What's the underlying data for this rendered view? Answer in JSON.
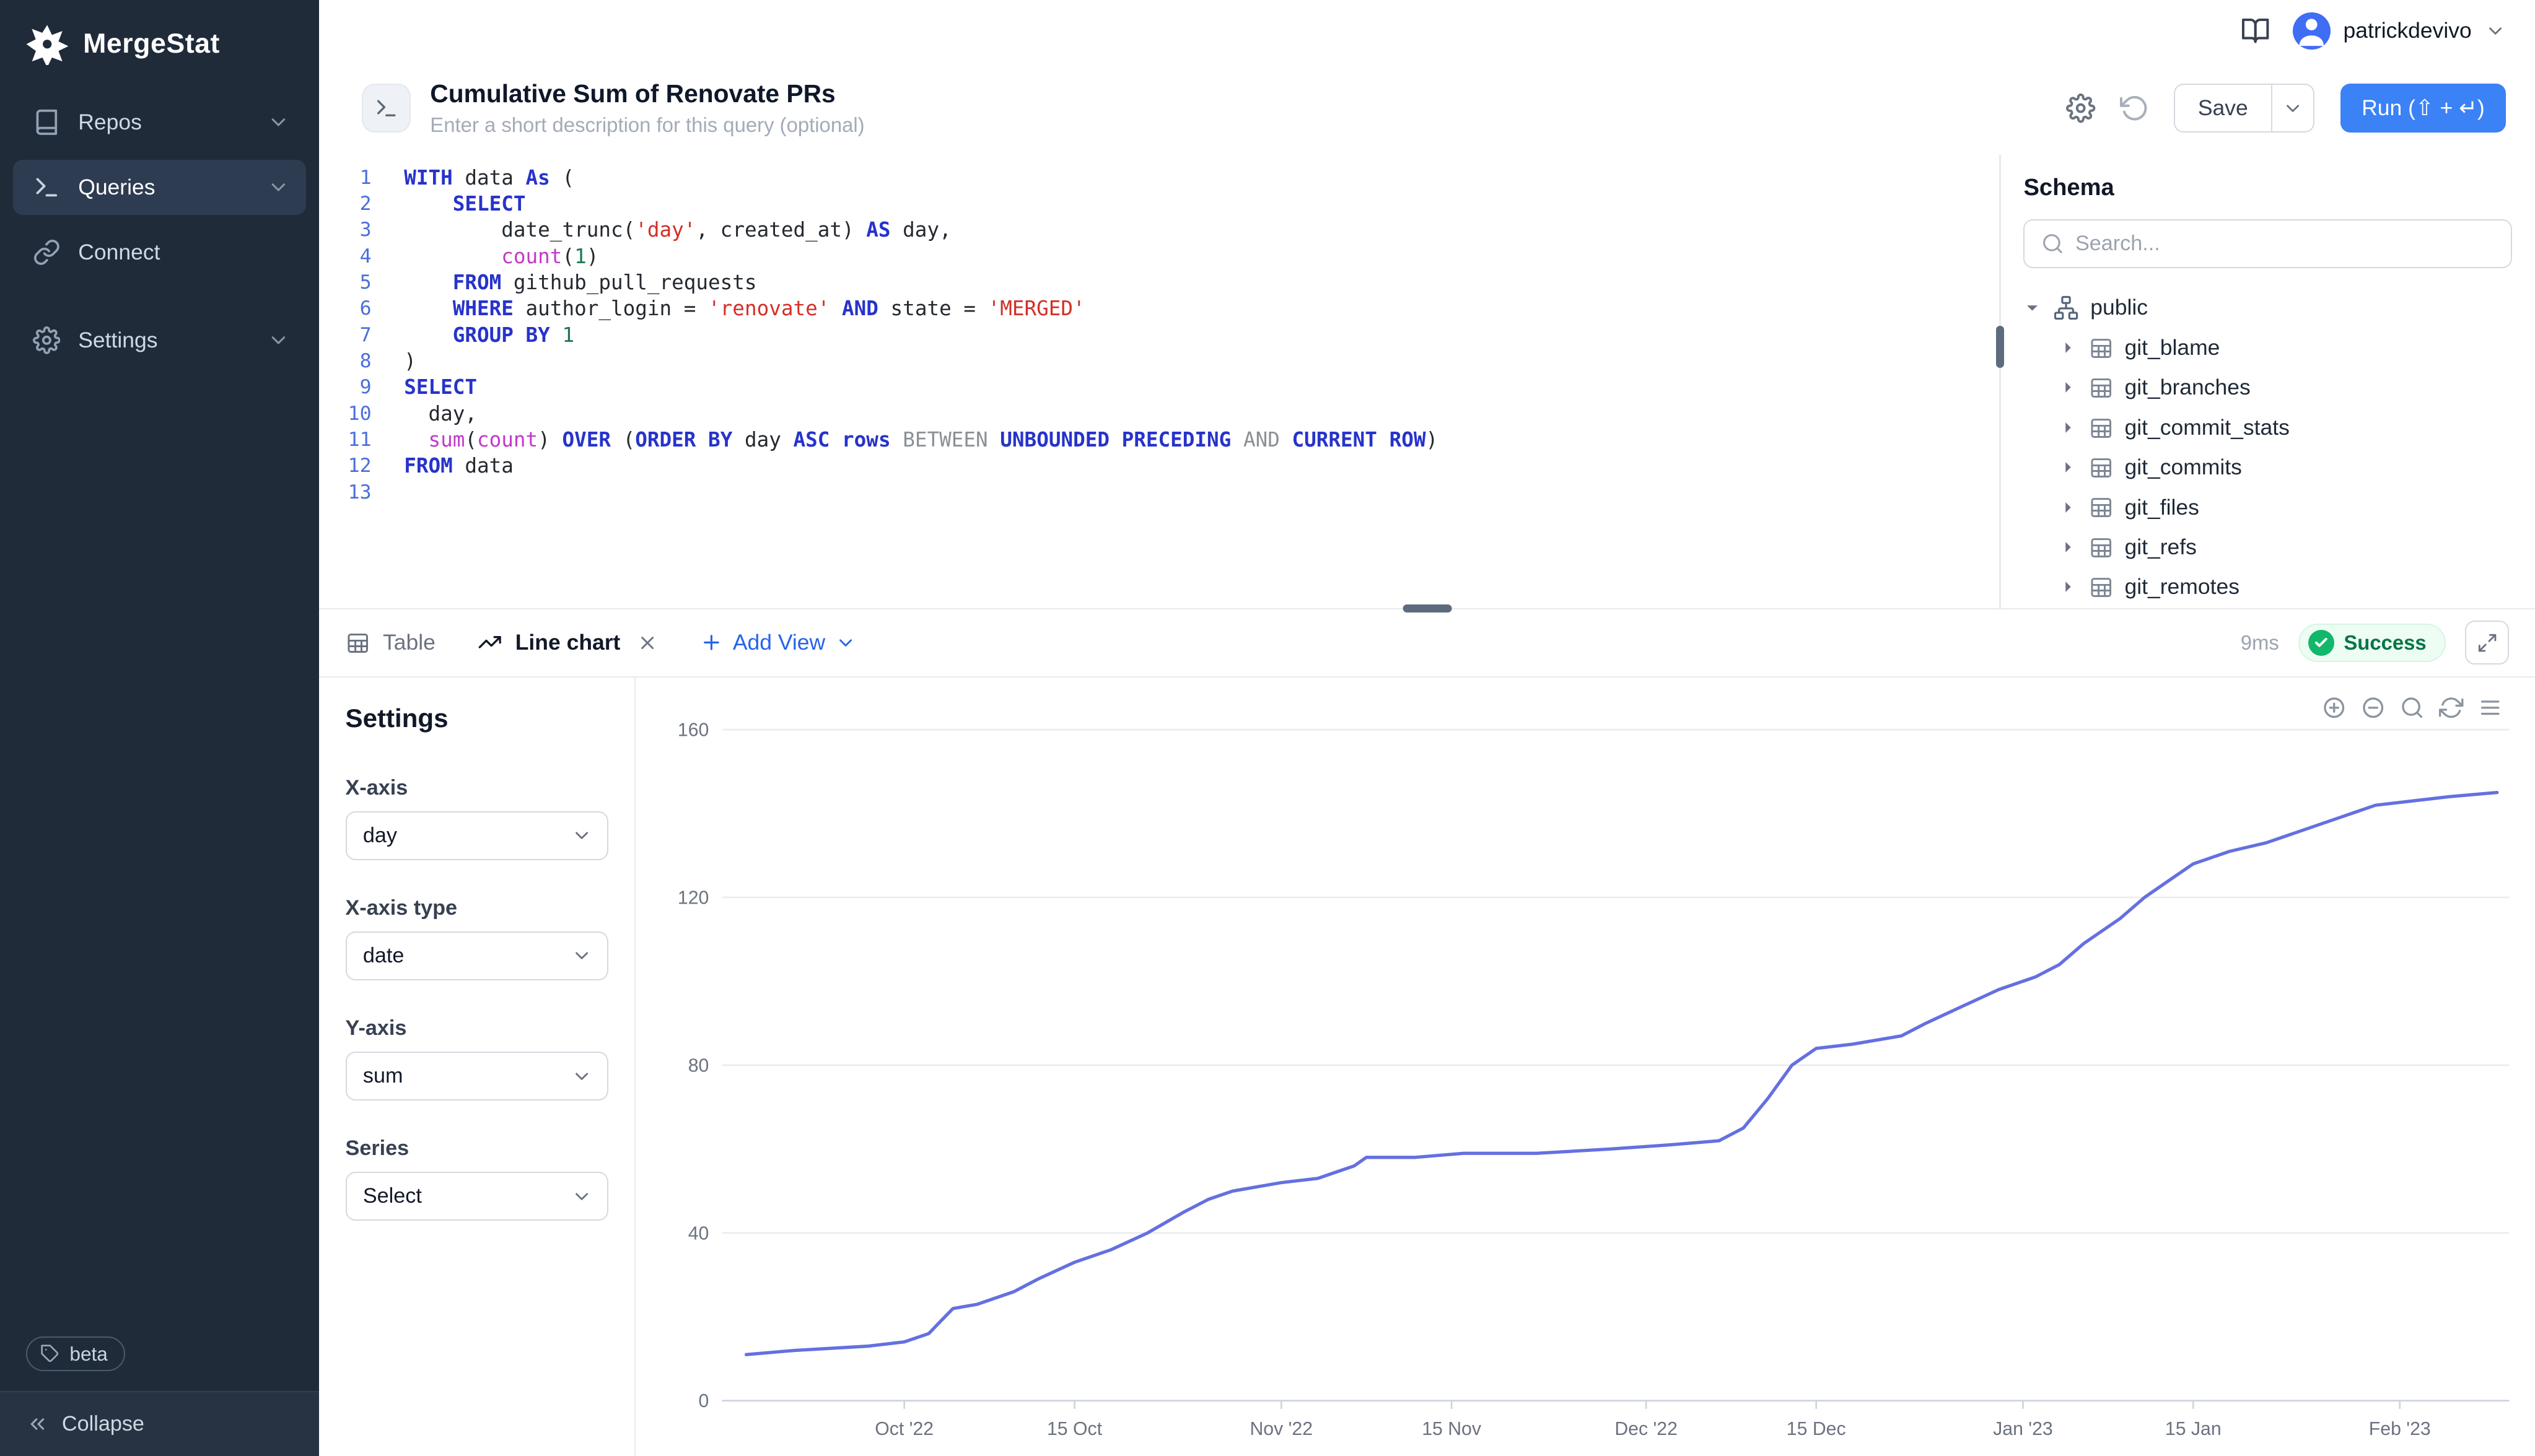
{
  "app": {
    "brand": "MergeStat"
  },
  "colors": {
    "sidebar_bg": "#202b3a",
    "accent": "#2563eb",
    "run_button": "#3b82f6",
    "success": "#12b76a",
    "chart_line": "#6470e0"
  },
  "icons": {
    "logo": "pinwheel-star",
    "repos": "book",
    "queries": "terminal",
    "connect": "link",
    "settings": "gear",
    "docs": "book-open",
    "history": "rotate-ccw",
    "search": "magnifier",
    "beta": "tag",
    "collapse": "double-chevron-left",
    "expand": "diagonal-arrows",
    "status": "check-circle",
    "chart_toolbar": [
      "zoom-in",
      "zoom-out",
      "magnifier",
      "refresh",
      "menu"
    ]
  },
  "sidebar": {
    "items": [
      {
        "label": "Repos",
        "icon": "repo",
        "chevron": true
      },
      {
        "label": "Queries",
        "icon": "terminal",
        "chevron": true,
        "active": true
      },
      {
        "label": "Connect",
        "icon": "link",
        "chevron": false
      },
      {
        "label": "Settings",
        "icon": "gear",
        "chevron": true,
        "gap": true
      }
    ],
    "beta_label": "beta",
    "collapse_label": "Collapse"
  },
  "topbar": {
    "username": "patrickdevivo"
  },
  "query_header": {
    "title": "Cumulative Sum of Renovate PRs",
    "description_placeholder": "Enter a short description for this query (optional)",
    "save_label": "Save",
    "run_label": "Run (⇧ + ↵)"
  },
  "editor": {
    "language": "sql",
    "lines": [
      [
        {
          "t": "WITH",
          "c": "kw"
        },
        {
          "t": " data ",
          "c": "id"
        },
        {
          "t": "As",
          "c": "kw"
        },
        {
          "t": " (",
          "c": "id"
        }
      ],
      [
        {
          "t": "    ",
          "c": "id"
        },
        {
          "t": "SELECT",
          "c": "kw"
        }
      ],
      [
        {
          "t": "        date_trunc(",
          "c": "id"
        },
        {
          "t": "'day'",
          "c": "str"
        },
        {
          "t": ", created_at) ",
          "c": "id"
        },
        {
          "t": "AS",
          "c": "kw"
        },
        {
          "t": " day,",
          "c": "id"
        }
      ],
      [
        {
          "t": "        ",
          "c": "id"
        },
        {
          "t": "count",
          "c": "fn"
        },
        {
          "t": "(",
          "c": "id"
        },
        {
          "t": "1",
          "c": "num"
        },
        {
          "t": ")",
          "c": "id"
        }
      ],
      [
        {
          "t": "    ",
          "c": "id"
        },
        {
          "t": "FROM",
          "c": "kw"
        },
        {
          "t": " github_pull_requests",
          "c": "id"
        }
      ],
      [
        {
          "t": "    ",
          "c": "id"
        },
        {
          "t": "WHERE",
          "c": "kw"
        },
        {
          "t": " author_login = ",
          "c": "id"
        },
        {
          "t": "'renovate'",
          "c": "str"
        },
        {
          "t": " ",
          "c": "id"
        },
        {
          "t": "AND",
          "c": "kw"
        },
        {
          "t": " state = ",
          "c": "id"
        },
        {
          "t": "'MERGED'",
          "c": "str"
        }
      ],
      [
        {
          "t": "    ",
          "c": "id"
        },
        {
          "t": "GROUP BY",
          "c": "kw"
        },
        {
          "t": " ",
          "c": "id"
        },
        {
          "t": "1",
          "c": "num"
        }
      ],
      [
        {
          "t": ")",
          "c": "id"
        }
      ],
      [
        {
          "t": "SELECT",
          "c": "kw"
        }
      ],
      [
        {
          "t": "  day,",
          "c": "id"
        }
      ],
      [
        {
          "t": "  ",
          "c": "id"
        },
        {
          "t": "sum",
          "c": "fn"
        },
        {
          "t": "(",
          "c": "id"
        },
        {
          "t": "count",
          "c": "fn"
        },
        {
          "t": ") ",
          "c": "id"
        },
        {
          "t": "OVER",
          "c": "kw"
        },
        {
          "t": " (",
          "c": "id"
        },
        {
          "t": "ORDER BY",
          "c": "kw"
        },
        {
          "t": " day ",
          "c": "id"
        },
        {
          "t": "ASC",
          "c": "kw"
        },
        {
          "t": " ",
          "c": "id"
        },
        {
          "t": "rows",
          "c": "kw"
        },
        {
          "t": " ",
          "c": "id"
        },
        {
          "t": "BETWEEN",
          "c": "gr"
        },
        {
          "t": " ",
          "c": "id"
        },
        {
          "t": "UNBOUNDED PRECEDING",
          "c": "kw"
        },
        {
          "t": " ",
          "c": "id"
        },
        {
          "t": "AND",
          "c": "gr"
        },
        {
          "t": " ",
          "c": "id"
        },
        {
          "t": "CURRENT ROW",
          "c": "kw"
        },
        {
          "t": ")",
          "c": "id"
        }
      ],
      [
        {
          "t": "FROM",
          "c": "kw"
        },
        {
          "t": " data",
          "c": "id"
        }
      ],
      []
    ]
  },
  "schema": {
    "heading": "Schema",
    "search_placeholder": "Search...",
    "root": "public",
    "tables": [
      "git_blame",
      "git_branches",
      "git_commit_stats",
      "git_commits",
      "git_files",
      "git_refs",
      "git_remotes"
    ]
  },
  "results": {
    "tabs": [
      {
        "label": "Table",
        "icon": "table",
        "active": false,
        "closable": false
      },
      {
        "label": "Line chart",
        "icon": "chart",
        "active": true,
        "closable": true
      }
    ],
    "add_view_label": "Add View",
    "duration": "9ms",
    "status": "Success"
  },
  "view_settings": {
    "heading": "Settings",
    "fields": [
      {
        "label": "X-axis",
        "value": "day"
      },
      {
        "label": "X-axis type",
        "value": "date"
      },
      {
        "label": "Y-axis",
        "value": "sum"
      },
      {
        "label": "Series",
        "value": "Select"
      }
    ]
  },
  "chart_data": {
    "type": "line",
    "x_field": "day",
    "y_field": "sum",
    "x_type": "date",
    "x_range": [
      "2022-09-16",
      "2023-02-10"
    ],
    "ylim": [
      0,
      160
    ],
    "yticks": [
      0,
      40,
      80,
      120,
      160
    ],
    "xticks": [
      {
        "date": "2022-10-01",
        "label": "Oct '22"
      },
      {
        "date": "2022-10-15",
        "label": "15 Oct"
      },
      {
        "date": "2022-11-01",
        "label": "Nov '22"
      },
      {
        "date": "2022-11-15",
        "label": "15 Nov"
      },
      {
        "date": "2022-12-01",
        "label": "Dec '22"
      },
      {
        "date": "2022-12-15",
        "label": "15 Dec"
      },
      {
        "date": "2023-01-01",
        "label": "Jan '23"
      },
      {
        "date": "2023-01-15",
        "label": "15 Jan"
      },
      {
        "date": "2023-02-01",
        "label": "Feb '23"
      }
    ],
    "grid": "horizontal",
    "legend": "none",
    "series": [
      {
        "name": "sum",
        "color": "#6470e0",
        "points": [
          [
            "2022-09-18",
            11
          ],
          [
            "2022-09-22",
            12
          ],
          [
            "2022-09-28",
            13
          ],
          [
            "2022-10-01",
            14
          ],
          [
            "2022-10-03",
            16
          ],
          [
            "2022-10-04",
            19
          ],
          [
            "2022-10-05",
            22
          ],
          [
            "2022-10-07",
            23
          ],
          [
            "2022-10-10",
            26
          ],
          [
            "2022-10-12",
            29
          ],
          [
            "2022-10-15",
            33
          ],
          [
            "2022-10-18",
            36
          ],
          [
            "2022-10-21",
            40
          ],
          [
            "2022-10-24",
            45
          ],
          [
            "2022-10-26",
            48
          ],
          [
            "2022-10-28",
            50
          ],
          [
            "2022-11-01",
            52
          ],
          [
            "2022-11-04",
            53
          ],
          [
            "2022-11-07",
            56
          ],
          [
            "2022-11-08",
            58
          ],
          [
            "2022-11-12",
            58
          ],
          [
            "2022-11-16",
            59
          ],
          [
            "2022-11-22",
            59
          ],
          [
            "2022-11-28",
            60
          ],
          [
            "2022-12-03",
            61
          ],
          [
            "2022-12-07",
            62
          ],
          [
            "2022-12-09",
            65
          ],
          [
            "2022-12-11",
            72
          ],
          [
            "2022-12-13",
            80
          ],
          [
            "2022-12-15",
            84
          ],
          [
            "2022-12-18",
            85
          ],
          [
            "2022-12-22",
            87
          ],
          [
            "2022-12-24",
            90
          ],
          [
            "2022-12-27",
            94
          ],
          [
            "2022-12-30",
            98
          ],
          [
            "2023-01-02",
            101
          ],
          [
            "2023-01-04",
            104
          ],
          [
            "2023-01-06",
            109
          ],
          [
            "2023-01-09",
            115
          ],
          [
            "2023-01-11",
            120
          ],
          [
            "2023-01-13",
            124
          ],
          [
            "2023-01-15",
            128
          ],
          [
            "2023-01-18",
            131
          ],
          [
            "2023-01-21",
            133
          ],
          [
            "2023-01-24",
            136
          ],
          [
            "2023-01-27",
            139
          ],
          [
            "2023-01-30",
            142
          ],
          [
            "2023-02-02",
            143
          ],
          [
            "2023-02-05",
            144
          ],
          [
            "2023-02-09",
            145
          ]
        ]
      }
    ]
  }
}
